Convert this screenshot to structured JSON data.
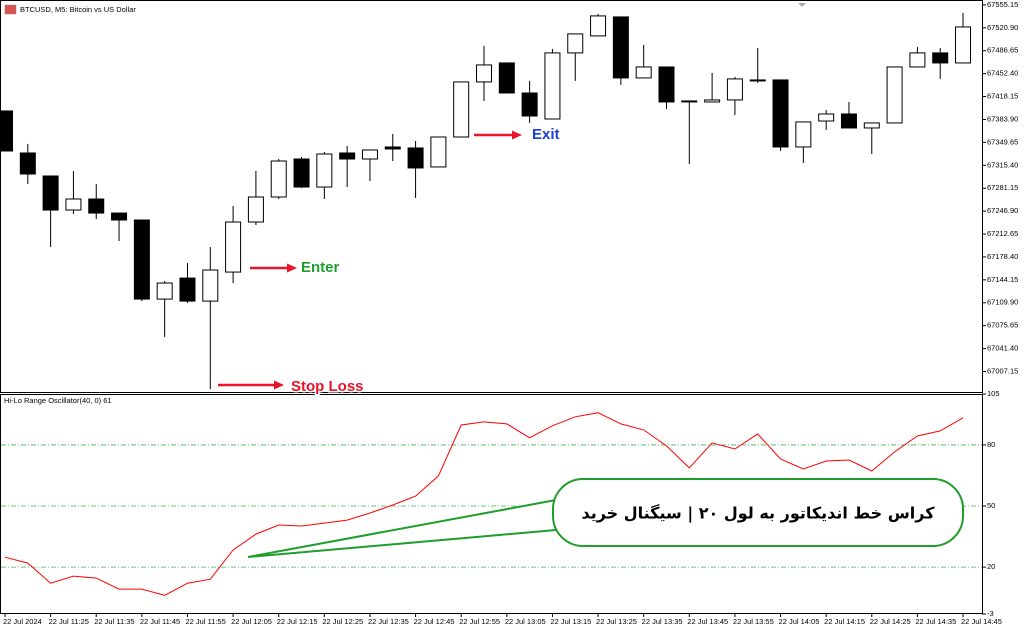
{
  "chart_data": [
    {
      "type": "candlestick",
      "title": "BTCUSD, M5: Bitcoin vs US Dollar",
      "open": [
        67396.6,
        67333.8,
        67299.4,
        67248.5,
        67265.0,
        67244.0,
        67233.6,
        67115.4,
        67146.8,
        67112.4,
        67155.8,
        67230.6,
        67268.0,
        67324.8,
        67282.9,
        67333.8,
        67324.8,
        67342.8,
        67341.3,
        67312.9,
        67357.7,
        67440.0,
        67468.4,
        67423.5,
        67384.6,
        67483.4,
        67508.8,
        67537.2,
        67446.0,
        67462.4,
        67411.6,
        67410.1,
        67413.1,
        67443.0,
        67443.0,
        67342.8,
        67381.6,
        67392.1,
        67371.2,
        67378.7,
        67462.4,
        67483.4,
        67468.4
      ],
      "high": [
        67396.6,
        67347.3,
        67299.4,
        67306.9,
        67287.4,
        67244.0,
        67233.6,
        67142.4,
        67169.3,
        67193.2,
        67254.5,
        67306.9,
        67324.8,
        67327.8,
        67335.3,
        67344.3,
        67338.3,
        67362.2,
        67351.7,
        67357.7,
        67440.0,
        67493.8,
        67468.4,
        67441.5,
        67489.3,
        67511.8,
        67541.7,
        67537.2,
        67495.3,
        67462.4,
        67411.6,
        67453.4,
        67447.5,
        67490.8,
        67443.0,
        67380.2,
        67398.1,
        67410.1,
        67378.7,
        67462.4,
        67492.3,
        67490.8,
        67543.2
      ],
      "low": [
        67336.8,
        67287.4,
        67193.2,
        67242.6,
        67235.1,
        67202.2,
        67112.4,
        67058.6,
        67109.4,
        66980.8,
        67139.4,
        67226.1,
        67265.0,
        67281.5,
        67265.0,
        67282.9,
        67291.9,
        67321.8,
        67266.5,
        67312.9,
        67357.7,
        67411.6,
        67423.5,
        67378.7,
        67384.6,
        67441.5,
        67508.8,
        67435.5,
        67446.0,
        67399.6,
        67317.3,
        67410.1,
        67390.6,
        67438.5,
        67336.8,
        67318.8,
        67368.2,
        67371.2,
        67332.3,
        67378.7,
        67462.4,
        67444.5,
        67468.4
      ],
      "close": [
        67336.8,
        67302.4,
        67248.5,
        67265.0,
        67244.0,
        67233.6,
        67115.4,
        67139.4,
        67112.4,
        67158.8,
        67230.6,
        67268.0,
        67321.8,
        67282.9,
        67332.3,
        67324.8,
        67338.3,
        67339.8,
        67311.4,
        67357.7,
        67440.0,
        67465.4,
        67423.5,
        67389.1,
        67483.4,
        67511.8,
        67538.7,
        67446.0,
        67462.4,
        67410.1,
        67410.1,
        67413.1,
        67444.5,
        67441.5,
        67342.8,
        67380.2,
        67392.1,
        67371.2,
        67378.7,
        67462.4,
        67483.4,
        67468.4,
        67522.2
      ],
      "up_color": "#ffffff",
      "down_color": "#000000",
      "ylim": [
        66975,
        67561
      ],
      "yticks": [
        67555.15,
        {
          "value": 67520.9,
          "label": "67520.90"
        },
        67486.65,
        {
          "value": 67452.4,
          "label": "67452.40"
        },
        67418.15,
        {
          "value": 67383.9,
          "label": "67383.90"
        },
        67349.65,
        {
          "value": 67315.4,
          "label": "67315.40"
        },
        67281.15,
        {
          "value": 67246.9,
          "label": "67246.90"
        },
        67212.65,
        {
          "value": 67178.4,
          "label": "67178.40"
        },
        67144.15,
        {
          "value": 67109.9,
          "label": "67109.90"
        },
        67075.65,
        {
          "value": 67041.4,
          "label": "67041.40"
        },
        67007.15
      ],
      "annotations": [
        {
          "text": "Exit",
          "color": "#1c3fd6"
        },
        {
          "text": "Enter",
          "color": "#1e9e2a"
        },
        {
          "text": "Stop Loss",
          "color": "#e8142a"
        }
      ]
    },
    {
      "type": "line",
      "title": "Hi-Lo Range Oscillator(40, 0) 61",
      "categories": [
        "22 Jul 2024",
        null,
        "22 Jul 11:25",
        null,
        "22 Jul 11:35",
        null,
        "22 Jul 11:45",
        null,
        "22 Jul 11:55",
        null,
        "22 Jul 12:05",
        null,
        "22 Jul 12:15",
        null,
        "22 Jul 12:25",
        null,
        "22 Jul 12:35",
        null,
        "22 Jul 12:45",
        null,
        "22 Jul 12:55",
        null,
        "22 Jul 13:05",
        null,
        "22 Jul 13:15",
        null,
        "22 Jul 13:25",
        null,
        "22 Jul 13:35",
        null,
        "22 Jul 13:45",
        null,
        "22 Jul 13:55",
        null,
        "22 Jul 14:05",
        null,
        "22 Jul 14:15",
        null,
        "22 Jul 14:25",
        null,
        "22 Jul 14:35",
        null,
        "22 Jul 14:45"
      ],
      "values": [
        24.9,
        22,
        12.1,
        15.6,
        14.6,
        9.2,
        9.2,
        6.2,
        12.1,
        14.1,
        28.4,
        36.2,
        40.7,
        40.2,
        41.6,
        43.1,
        46.6,
        50.5,
        54.9,
        64.8,
        89.8,
        91.3,
        90.3,
        83.5,
        89.4,
        93.8,
        95.8,
        90.3,
        87.4,
        79.5,
        68.7,
        81,
        78,
        85.4,
        73.1,
        68.2,
        72.1,
        72.6,
        67.2,
        76.6,
        84.4,
        86.9,
        93.3
      ],
      "color": "#ff0000",
      "ylim": [
        -3,
        105
      ],
      "yticks": [
        105,
        80,
        50,
        20,
        -3
      ],
      "grid": true,
      "grid_color": "#3cb44b",
      "annotations": [
        {
          "text": "کراس خط اندیکاتور به لول ۲۰ | سیگنال خرید"
        }
      ]
    }
  ]
}
